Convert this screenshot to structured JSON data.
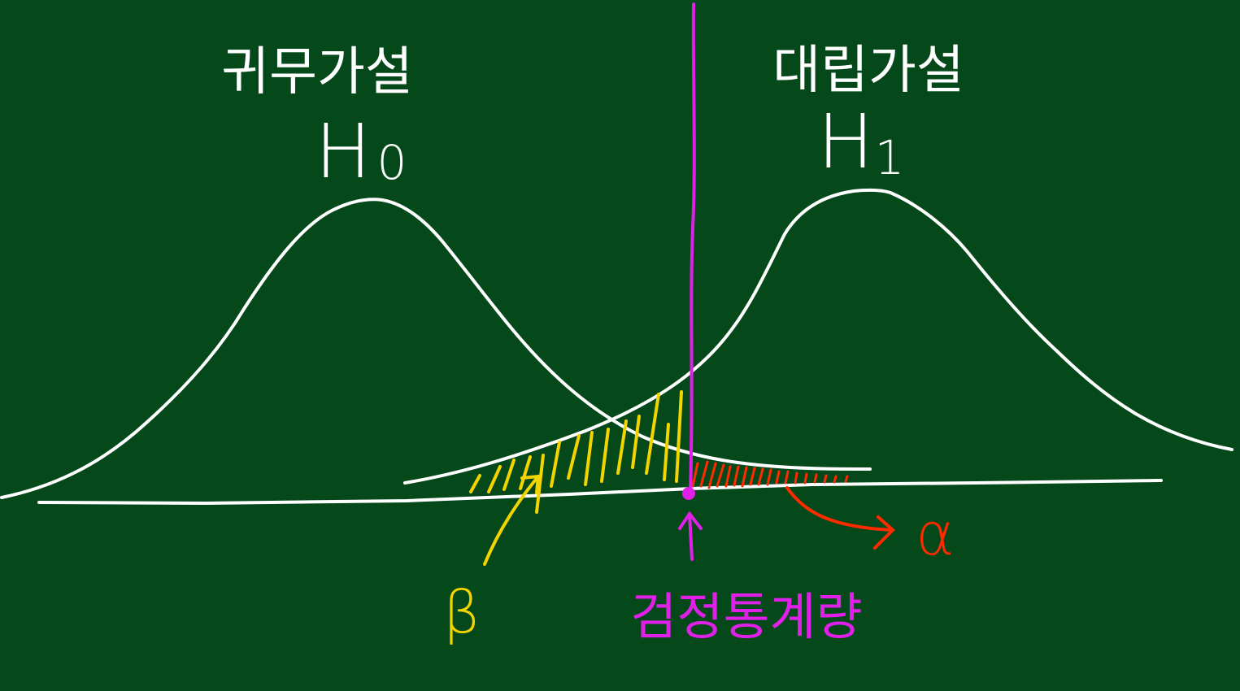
{
  "colors": {
    "background": "#05491b",
    "chalk_white": "#ffffff",
    "statistic_magenta": "#e020e8",
    "beta_yellow": "#f3d400",
    "alpha_red": "#ff2a00"
  },
  "labels": {
    "null_hypothesis_word": "귀무가설",
    "null_hypothesis_symbol": "H",
    "null_hypothesis_subscript": "0",
    "alt_hypothesis_word": "대립가설",
    "alt_hypothesis_symbol": "H",
    "alt_hypothesis_subscript": "1",
    "test_statistic": "검정통계량",
    "beta": "β",
    "alpha": "α"
  }
}
